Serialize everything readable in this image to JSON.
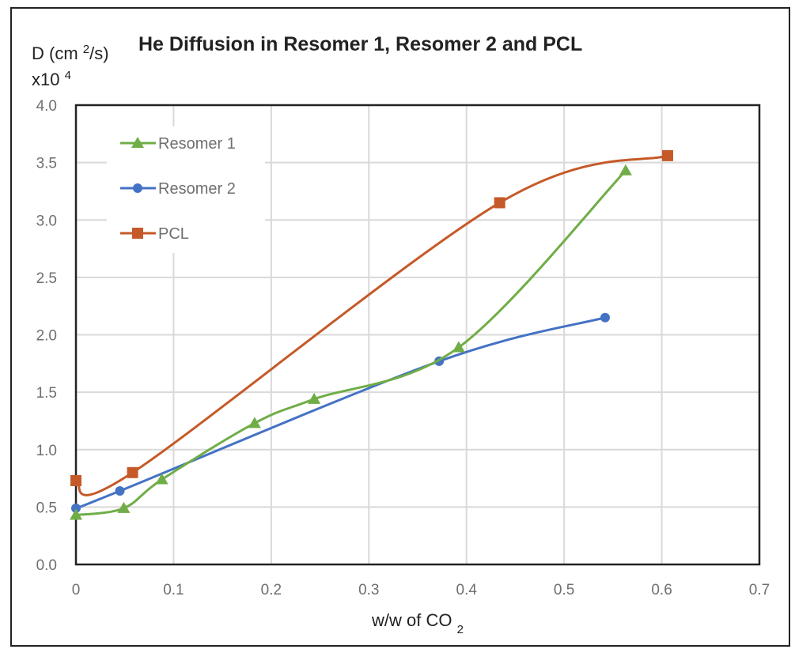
{
  "chart_data": {
    "type": "line",
    "title": "He Diffusion in Resomer 1, Resomer 2 and PCL",
    "ylabel": "D (cm2/s)",
    "ylabel_line2": "x10^4",
    "xlabel": "w/w of CO2",
    "xlim": [
      0,
      0.7
    ],
    "ylim": [
      0,
      4.0
    ],
    "grid": true,
    "legend_position": "top-left",
    "smoothed": true,
    "x_ticks": [
      "0",
      "0.1",
      "0.2",
      "0.3",
      "0.4",
      "0.5",
      "0.6",
      "0.7"
    ],
    "y_ticks": [
      "0.0",
      "0.5",
      "1.0",
      "1.5",
      "2.0",
      "2.5",
      "3.0",
      "3.5",
      "4.0"
    ],
    "series": [
      {
        "name": "Resomer 1",
        "color": "#70ad47",
        "marker": "triangle",
        "x": [
          0,
          0.049,
          0.088,
          0.183,
          0.244,
          0.392,
          0.563
        ],
        "y": [
          0.43,
          0.49,
          0.74,
          1.23,
          1.44,
          1.89,
          3.43
        ]
      },
      {
        "name": "Resomer 2",
        "color": "#4472c4",
        "marker": "circle",
        "x": [
          0,
          0.045,
          0.372,
          0.542
        ],
        "y": [
          0.49,
          0.64,
          1.77,
          2.15
        ]
      },
      {
        "name": "PCL",
        "color": "#c55a28",
        "marker": "square",
        "x": [
          0,
          0.058,
          0.434,
          0.606
        ],
        "y": [
          0.73,
          0.8,
          3.15,
          3.56
        ]
      }
    ]
  }
}
